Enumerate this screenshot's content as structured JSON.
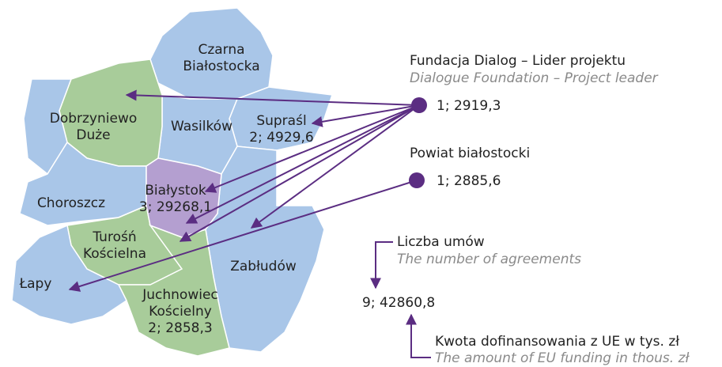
{
  "regions": [
    {
      "name": [
        "Czarna",
        "Białostocka"
      ]
    },
    {
      "name": [
        "Dobrzyniewo",
        "Duże"
      ]
    },
    {
      "name": [
        "Wasilków"
      ]
    },
    {
      "name": [
        "Supraśl"
      ],
      "value": "2; 4929,6"
    },
    {
      "name": [
        "Choroszcz"
      ]
    },
    {
      "name": [
        "Białystok"
      ],
      "value": "3; 29268,1"
    },
    {
      "name": [
        "Turośń",
        "Kościelna"
      ]
    },
    {
      "name": [
        "Łapy"
      ]
    },
    {
      "name": [
        "Zabłudów"
      ]
    },
    {
      "name": [
        "Juchnowiec",
        "Kościelny"
      ],
      "value": "2; 2858,3"
    }
  ],
  "beneficiaries": [
    {
      "name": "Fundacja Dialog – Lider projektu",
      "name_en": "Dialogue Foundation – Project leader",
      "value": "1; 2919,3"
    },
    {
      "name": "Powiat białostocki",
      "value": "1; 2885,6"
    }
  ],
  "key": {
    "count_label": "Liczba umów",
    "count_label_en": "The number of agreements",
    "total": "9; 42860,8",
    "amount_label": "Kwota dofinansowania z UE w tys. zł",
    "amount_label_en": "The amount of EU funding in thous. zł"
  }
}
